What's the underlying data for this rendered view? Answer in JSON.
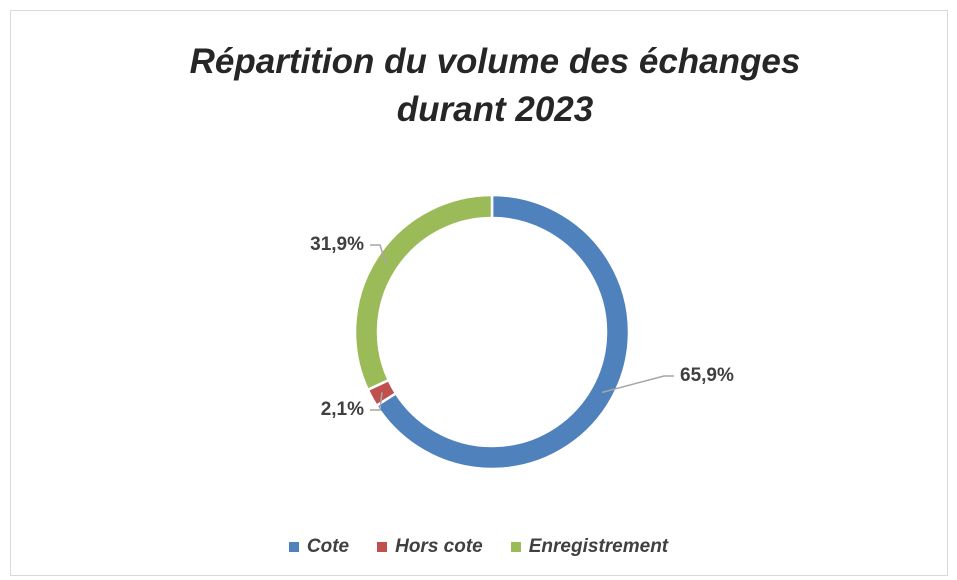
{
  "chart_data": {
    "type": "pie",
    "donut": true,
    "title": "Répartition du volume des échanges durant 2023",
    "categories": [
      "Cote",
      "Hors cote",
      "Enregistrement"
    ],
    "values": [
      65.9,
      2.1,
      31.9
    ],
    "value_labels": [
      "65,9%",
      "2,1%",
      "31,9%"
    ],
    "colors": [
      "#4f81bd",
      "#c0504d",
      "#9bbb59"
    ],
    "legend": "bottom"
  }
}
